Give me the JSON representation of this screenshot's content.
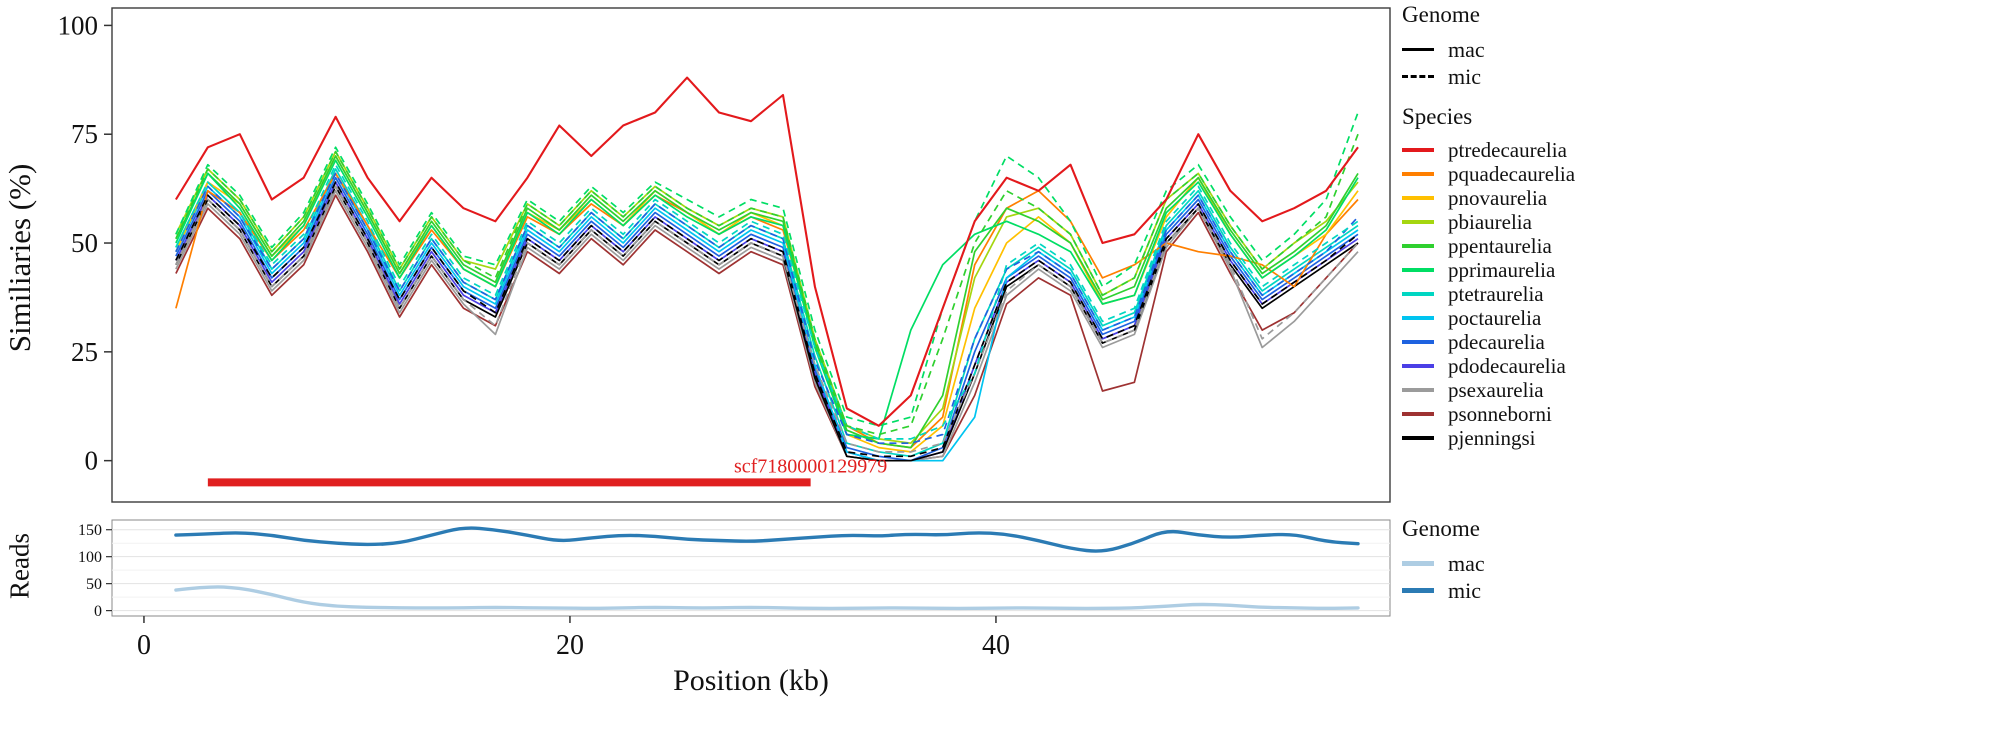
{
  "figure": {
    "y_axis_top": "Similiaries (%)",
    "y_axis_bottom": "Reads",
    "x_axis": "Position (kb)"
  },
  "legend": {
    "genome_top": {
      "title": "Genome",
      "items": [
        {
          "label": "mac",
          "style": "solid"
        },
        {
          "label": "mic",
          "style": "dashed"
        }
      ]
    },
    "species": {
      "title": "Species",
      "items": [
        {
          "label": "ptredecaurelia",
          "color": "#e3191c"
        },
        {
          "label": "pquadecaurelia",
          "color": "#ff7f00"
        },
        {
          "label": "pnovaurelia",
          "color": "#ffc000"
        },
        {
          "label": "pbiaurelia",
          "color": "#a5d610"
        },
        {
          "label": "ppentaurelia",
          "color": "#2fd02f"
        },
        {
          "label": "pprimaurelia",
          "color": "#00de64"
        },
        {
          "label": "ptetraurelia",
          "color": "#00d6c2"
        },
        {
          "label": "poctaurelia",
          "color": "#00c4f0"
        },
        {
          "label": "pdecaurelia",
          "color": "#1e62e0"
        },
        {
          "label": "pdodecaurelia",
          "color": "#4b3fe6"
        },
        {
          "label": "psexaurelia",
          "color": "#9b9b9b"
        },
        {
          "label": "psonneborni",
          "color": "#9e3232"
        },
        {
          "label": "pjenningsi",
          "color": "#000000"
        }
      ]
    },
    "genome_bottom": {
      "title": "Genome",
      "items": [
        {
          "label": "mac",
          "color": "#aecde3"
        },
        {
          "label": "mic",
          "color": "#2b7bb4"
        }
      ]
    }
  },
  "chart_data": [
    {
      "type": "line",
      "panel": "similarity",
      "ylabel": "Similiaries (%)",
      "xlabel": "Position (kb)",
      "xlim": [
        -1.5,
        58.5
      ],
      "ylim": [
        0,
        100
      ],
      "xticks": [
        0,
        20,
        40
      ],
      "yticks": [
        0,
        25,
        50,
        75,
        100
      ],
      "x": [
        1.5,
        3,
        4.5,
        6,
        7.5,
        9,
        10.5,
        12,
        13.5,
        15,
        16.5,
        18,
        19.5,
        21,
        22.5,
        24,
        25.5,
        27,
        28.5,
        30,
        31.5,
        33,
        34.5,
        36,
        37.5,
        39,
        40.5,
        42,
        43.5,
        45,
        46.5,
        48,
        49.5,
        51,
        52.5,
        54,
        55.5,
        57
      ],
      "annotation": {
        "label": "scf7180000129979",
        "x_start": 3,
        "x_end": 31.3,
        "y": -5,
        "color": "#e02020"
      },
      "series": [
        {
          "species": "psonneborni",
          "genome": "mac",
          "color": "#9e3232",
          "values": [
            43,
            58,
            51,
            38,
            45,
            61,
            48,
            33,
            45,
            35,
            31,
            48,
            43,
            51,
            45,
            53,
            48,
            43,
            48,
            45,
            17,
            1,
            0,
            0,
            1,
            15,
            36,
            42,
            38,
            16,
            18,
            48,
            57,
            43,
            30,
            34,
            42,
            50
          ]
        },
        {
          "species": "psexaurelia",
          "genome": "mac",
          "color": "#9b9b9b",
          "values": [
            44,
            59,
            52,
            39,
            46,
            62,
            49,
            34,
            46,
            36,
            29,
            49,
            44,
            52,
            46,
            54,
            49,
            44,
            49,
            46,
            18,
            1,
            0,
            0,
            1,
            18,
            38,
            44,
            39,
            26,
            29,
            49,
            58,
            44,
            26,
            32,
            40,
            48
          ]
        },
        {
          "species": "pdodecaurelia",
          "genome": "mac",
          "color": "#4b3fe6",
          "values": [
            46,
            61,
            54,
            41,
            48,
            64,
            51,
            36,
            48,
            38,
            34,
            51,
            46,
            54,
            48,
            56,
            51,
            46,
            51,
            48,
            20,
            2,
            0,
            0,
            2,
            22,
            41,
            46,
            41,
            28,
            31,
            51,
            59,
            46,
            36,
            41,
            46,
            51
          ]
        },
        {
          "species": "pdecaurelia",
          "genome": "mac",
          "color": "#1e62e0",
          "values": [
            47,
            62,
            55,
            42,
            49,
            65,
            52,
            37,
            49,
            39,
            35,
            52,
            47,
            55,
            49,
            57,
            52,
            47,
            52,
            49,
            21,
            3,
            1,
            0,
            3,
            25,
            42,
            47,
            42,
            29,
            32,
            52,
            60,
            47,
            37,
            42,
            47,
            52
          ]
        },
        {
          "species": "poctaurelia",
          "genome": "mac",
          "color": "#00c4f0",
          "values": [
            48,
            63,
            56,
            43,
            50,
            66,
            53,
            38,
            50,
            40,
            36,
            53,
            48,
            56,
            50,
            58,
            53,
            48,
            53,
            50,
            22,
            2,
            0,
            0,
            0,
            10,
            42,
            48,
            43,
            30,
            33,
            53,
            61,
            48,
            38,
            43,
            48,
            53
          ]
        },
        {
          "species": "ptetraurelia",
          "genome": "mac",
          "color": "#00d6c2",
          "values": [
            49,
            64,
            57,
            44,
            51,
            67,
            54,
            39,
            51,
            41,
            37,
            54,
            49,
            57,
            51,
            59,
            54,
            49,
            54,
            51,
            24,
            4,
            2,
            1,
            4,
            28,
            44,
            49,
            44,
            31,
            34,
            54,
            62,
            49,
            39,
            44,
            49,
            54
          ]
        },
        {
          "species": "pjenningsi",
          "genome": "mac",
          "color": "#000000",
          "values": [
            45,
            60,
            53,
            40,
            47,
            63,
            50,
            35,
            47,
            37,
            33,
            50,
            45,
            53,
            47,
            55,
            50,
            45,
            50,
            47,
            19,
            1,
            0,
            0,
            2,
            20,
            40,
            45,
            40,
            27,
            30,
            50,
            58,
            45,
            35,
            40,
            45,
            50
          ]
        },
        {
          "species": "pquadecaurelia",
          "genome": "mac",
          "color": "#ff7f00",
          "values": [
            35,
            62,
            57,
            46,
            53,
            66,
            54,
            42,
            53,
            44,
            40,
            56,
            52,
            59,
            54,
            61,
            57,
            52,
            56,
            53,
            27,
            8,
            4,
            3,
            10,
            45,
            58,
            62,
            55,
            42,
            45,
            50,
            48,
            47,
            45,
            40,
            52,
            60
          ]
        },
        {
          "species": "pnovaurelia",
          "genome": "mac",
          "color": "#ffc000",
          "values": [
            48,
            64,
            59,
            47,
            54,
            70,
            57,
            43,
            54,
            44,
            40,
            57,
            53,
            60,
            54,
            62,
            57,
            52,
            57,
            54,
            26,
            6,
            3,
            2,
            8,
            35,
            50,
            56,
            50,
            36,
            38,
            56,
            65,
            52,
            42,
            47,
            52,
            62
          ]
        },
        {
          "species": "pbiaurelia",
          "genome": "mac",
          "color": "#a5d610",
          "values": [
            52,
            67,
            60,
            48,
            56,
            71,
            58,
            44,
            56,
            46,
            44,
            59,
            54,
            62,
            56,
            63,
            58,
            54,
            58,
            56,
            28,
            8,
            5,
            4,
            12,
            42,
            56,
            58,
            52,
            38,
            42,
            60,
            66,
            54,
            44,
            50,
            55,
            64
          ]
        },
        {
          "species": "ppentaurelia",
          "genome": "mac",
          "color": "#2fd02f",
          "values": [
            51,
            66,
            59,
            47,
            55,
            70,
            57,
            43,
            55,
            45,
            41,
            58,
            53,
            61,
            55,
            62,
            57,
            53,
            57,
            55,
            27,
            7,
            4,
            3,
            15,
            48,
            58,
            55,
            50,
            37,
            40,
            58,
            65,
            53,
            43,
            48,
            54,
            66
          ]
        },
        {
          "species": "pprimaurelia",
          "genome": "mac",
          "color": "#00de64",
          "values": [
            50,
            66,
            58,
            46,
            54,
            69,
            56,
            42,
            54,
            44,
            40,
            57,
            52,
            60,
            54,
            61,
            56,
            52,
            56,
            54,
            26,
            6,
            5,
            30,
            45,
            52,
            55,
            52,
            48,
            36,
            38,
            57,
            64,
            52,
            42,
            47,
            53,
            65
          ]
        },
        {
          "species": "pjenningsi",
          "genome": "mic",
          "color": "#000000",
          "values": [
            46,
            61,
            54,
            42,
            49,
            64,
            51,
            37,
            49,
            39,
            34,
            51,
            46,
            54,
            48,
            56,
            51,
            46,
            51,
            48,
            20,
            2,
            1,
            1,
            3,
            22,
            41,
            46,
            41,
            28,
            31,
            51,
            59,
            46,
            36,
            41,
            46,
            52
          ]
        },
        {
          "species": "psexaurelia",
          "genome": "mic",
          "color": "#9b9b9b",
          "values": [
            45,
            60,
            53,
            40,
            47,
            63,
            50,
            35,
            47,
            37,
            31,
            50,
            45,
            53,
            47,
            55,
            50,
            45,
            50,
            47,
            22,
            4,
            2,
            2,
            4,
            20,
            39,
            45,
            40,
            27,
            30,
            50,
            58,
            45,
            28,
            34,
            42,
            50
          ]
        },
        {
          "species": "pdecaurelia",
          "genome": "mic",
          "color": "#1e62e0",
          "values": [
            48,
            63,
            56,
            44,
            51,
            66,
            53,
            39,
            51,
            41,
            37,
            54,
            49,
            57,
            51,
            59,
            54,
            49,
            54,
            51,
            23,
            6,
            4,
            4,
            6,
            28,
            44,
            48,
            43,
            30,
            33,
            53,
            61,
            48,
            38,
            43,
            48,
            56
          ]
        },
        {
          "species": "ptetraurelia",
          "genome": "mic",
          "color": "#00d6c2",
          "values": [
            49,
            64,
            57,
            45,
            52,
            68,
            55,
            40,
            52,
            42,
            38,
            55,
            50,
            58,
            52,
            60,
            55,
            50,
            55,
            52,
            26,
            8,
            5,
            5,
            8,
            20,
            45,
            50,
            45,
            32,
            35,
            55,
            63,
            50,
            40,
            45,
            50,
            55
          ]
        },
        {
          "species": "ppentaurelia",
          "genome": "mic",
          "color": "#2fd02f",
          "values": [
            51,
            67,
            60,
            48,
            56,
            71,
            58,
            44,
            56,
            46,
            42,
            59,
            54,
            62,
            56,
            63,
            58,
            54,
            58,
            56,
            28,
            8,
            6,
            8,
            28,
            50,
            62,
            58,
            52,
            38,
            42,
            60,
            66,
            54,
            44,
            50,
            56,
            75
          ]
        },
        {
          "species": "pprimaurelia",
          "genome": "mic",
          "color": "#00de64",
          "values": [
            52,
            68,
            61,
            49,
            57,
            72,
            59,
            45,
            57,
            47,
            45,
            60,
            55,
            63,
            57,
            64,
            60,
            56,
            60,
            58,
            30,
            10,
            8,
            10,
            35,
            55,
            70,
            65,
            55,
            40,
            45,
            62,
            68,
            56,
            46,
            52,
            60,
            80
          ]
        },
        {
          "species": "ptredecaurelia",
          "genome": "mac",
          "color": "#e3191c",
          "values": [
            60,
            72,
            75,
            60,
            65,
            79,
            65,
            55,
            65,
            58,
            55,
            65,
            77,
            70,
            77,
            80,
            88,
            80,
            78,
            84,
            40,
            12,
            8,
            15,
            35,
            55,
            65,
            62,
            68,
            50,
            52,
            60,
            75,
            62,
            55,
            58,
            62,
            72
          ]
        }
      ]
    },
    {
      "type": "line",
      "panel": "reads",
      "ylabel": "Reads",
      "ylim": [
        0,
        155
      ],
      "yticks": [
        0,
        50,
        100,
        150
      ],
      "x": [
        1.5,
        3,
        4.5,
        6,
        7.5,
        9,
        10.5,
        12,
        13.5,
        15,
        16.5,
        18,
        19.5,
        21,
        22.5,
        24,
        25.5,
        27,
        28.5,
        30,
        31.5,
        33,
        34.5,
        36,
        37.5,
        39,
        40.5,
        42,
        43.5,
        45,
        46.5,
        48,
        49.5,
        51,
        52.5,
        54,
        55.5,
        57
      ],
      "series": [
        {
          "genome": "mac",
          "color": "#aecde3",
          "values": [
            38,
            45,
            42,
            30,
            15,
            8,
            6,
            5,
            5,
            5,
            6,
            5,
            5,
            4,
            5,
            6,
            5,
            5,
            6,
            5,
            4,
            4,
            5,
            5,
            4,
            4,
            5,
            5,
            4,
            4,
            5,
            8,
            12,
            10,
            6,
            5,
            4,
            5
          ]
        },
        {
          "genome": "mic",
          "color": "#2b7bb4",
          "values": [
            140,
            142,
            145,
            140,
            130,
            125,
            122,
            125,
            140,
            155,
            150,
            140,
            128,
            135,
            140,
            138,
            132,
            130,
            128,
            132,
            136,
            140,
            138,
            142,
            140,
            145,
            142,
            130,
            115,
            108,
            125,
            150,
            140,
            135,
            140,
            142,
            128,
            124
          ]
        }
      ]
    }
  ]
}
